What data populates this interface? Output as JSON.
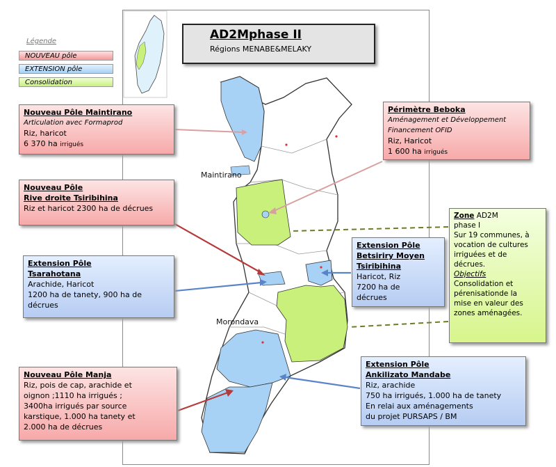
{
  "title": {
    "main": "AD2Mphase II",
    "sub": "Régions MENABE&MELAKY"
  },
  "legend": {
    "title": "Légende",
    "items": [
      {
        "label": "NOUVEAU pôle",
        "color": "#f59a9a"
      },
      {
        "label": "EXTENSION pôle",
        "color": "#a8d2f5"
      },
      {
        "label": "Consolidation",
        "color": "#c8f07a"
      }
    ]
  },
  "cities": {
    "maintirano": "Maintirano",
    "morondava": "Morondava"
  },
  "boxes": {
    "maintirano": {
      "title": "Nouveau Pôle Maintirano",
      "sub": "Articulation avec Formaprod",
      "line1": "Riz, haricot",
      "line2": "6 370 ha",
      "line2b": "irrigués"
    },
    "tsiribihina": {
      "title1": "Nouveau Pôle",
      "title2": "Rive droite Tsiribihina",
      "line1": "Riz et haricot 2300 ha de décrues"
    },
    "tsarahotana": {
      "title1": "Extension Pôle",
      "title2": "Tsarahotana",
      "line1": "Arachide, Haricot",
      "line2": "1200 ha de tanety, 900 ha de",
      "line3": "décrues"
    },
    "manja": {
      "title": "Nouveau Pôle Manja",
      "lines": [
        "Riz, pois de cap, arachide et",
        "oignon ;1110 ha irrigués ;",
        "3400ha irrigués par source",
        "karstique, 1.000 ha tanety et",
        "2.000 ha de décrues"
      ]
    },
    "beboka": {
      "title": "Périmètre Beboka",
      "sub1": "Aménagement et Développement",
      "sub2": "Financement OFID",
      "line1": "Riz, Haricot",
      "line2": "1 600 ha",
      "line2b": "irrigués"
    },
    "betsiriry": {
      "title1": "Extension Pôle",
      "title2": "Betsiriry Moyen",
      "title3": "Tsiribihina",
      "lines": [
        "Haricot, Riz",
        "7200 ha de",
        "décrues"
      ]
    },
    "zone": {
      "title1": "Zone",
      "title1b": "AD2M",
      "title2": "phase I",
      "lines": [
        "Sur 19 communes, à",
        "vocation de cultures",
        "irriguées et de",
        "décrues."
      ],
      "obj": "Objectifs",
      "lines2": [
        "Consolidation et",
        "pérenisationde la",
        "mise en valeur des",
        "zones aménagées."
      ]
    },
    "ankilizato": {
      "title1": "Extension Pôle",
      "title2": "Ankilizato Mandabe",
      "lines": [
        "Riz, arachide",
        "750 ha irrigués, 1.000 ha de tanety",
        "En  relai aux aménagements",
        "du projet PURSAPS / BM"
      ]
    }
  },
  "colors": {
    "new": "#f59a9a",
    "extension": "#a8d2f5",
    "consolidation": "#c8f07a"
  }
}
